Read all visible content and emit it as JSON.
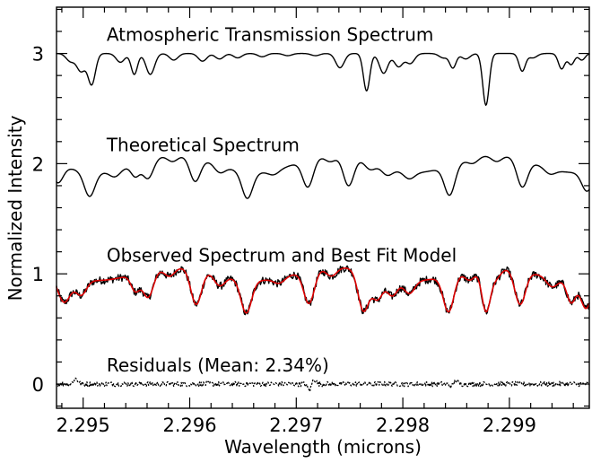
{
  "chart_data": {
    "type": "line",
    "xlabel": "Wavelength (microns)",
    "ylabel": "Normalized Intensity",
    "xlim": [
      2.29475,
      2.29975
    ],
    "ylim": [
      -0.22,
      3.42
    ],
    "xticks": [
      2.295,
      2.296,
      2.297,
      2.298,
      2.299
    ],
    "xtick_labels": [
      "2.295",
      "2.296",
      "2.297",
      "2.298",
      "2.299"
    ],
    "yticks": [
      0,
      1,
      2,
      3
    ],
    "ytick_labels": [
      "0",
      "1",
      "2",
      "3"
    ],
    "grid": false,
    "legend": "none",
    "annotations": [
      {
        "id": "atm",
        "text": "Atmospheric Transmission Spectrum",
        "x": 2.29522,
        "y": 3.17
      },
      {
        "id": "theo",
        "text": "Theoretical Spectrum",
        "x": 2.29522,
        "y": 2.17
      },
      {
        "id": "obs",
        "text": "Observed Spectrum and Best Fit Model",
        "x": 2.29522,
        "y": 1.17
      },
      {
        "id": "res",
        "text": "Residuals (Mean: 2.34%)",
        "x": 2.29522,
        "y": 0.17
      }
    ],
    "series": [
      {
        "id": "atmospheric",
        "color": "#000000",
        "style": "solid",
        "baseline": 3.0,
        "continuum": 0.0,
        "features": [
          [
            2.29488,
            0.07,
            4e-05
          ],
          [
            2.29498,
            0.16,
            4e-05
          ],
          [
            2.29508,
            0.28,
            3.5e-05
          ],
          [
            2.29535,
            0.08,
            4e-05
          ],
          [
            2.29548,
            0.19,
            3e-05
          ],
          [
            2.29563,
            0.19,
            4e-05
          ],
          [
            2.29585,
            0.06,
            4e-05
          ],
          [
            2.29612,
            0.07,
            4e-05
          ],
          [
            2.29628,
            0.05,
            4e-05
          ],
          [
            2.29645,
            0.04,
            4e-05
          ],
          [
            2.29668,
            0.03,
            4e-05
          ],
          [
            2.29692,
            0.02,
            4e-05
          ],
          [
            2.29718,
            0.02,
            4e-05
          ],
          [
            2.29741,
            0.13,
            4e-05
          ],
          [
            2.29766,
            0.34,
            3e-05
          ],
          [
            2.29782,
            0.18,
            4e-05
          ],
          [
            2.29796,
            0.12,
            4e-05
          ],
          [
            2.29807,
            0.09,
            4e-05
          ],
          [
            2.29838,
            0.04,
            4e-05
          ],
          [
            2.29847,
            0.13,
            3e-05
          ],
          [
            2.29859,
            0.05,
            4e-05
          ],
          [
            2.29878,
            0.47,
            3e-05
          ],
          [
            2.29912,
            0.16,
            3e-05
          ],
          [
            2.29922,
            0.04,
            4e-05
          ],
          [
            2.29949,
            0.14,
            3e-05
          ],
          [
            2.29958,
            0.1,
            3e-05
          ],
          [
            2.29968,
            0.06,
            3e-05
          ]
        ]
      },
      {
        "id": "theoretical",
        "color": "#000000",
        "style": "solid",
        "baseline": 2.0,
        "continuum": -0.08,
        "features": [
          [
            2.29476,
            0.17,
            5e-05
          ],
          [
            2.29506,
            0.22,
            5e-05
          ],
          [
            2.2953,
            0.06,
            5e-05
          ],
          [
            2.29549,
            0.11,
            4e-05
          ],
          [
            2.29561,
            0.17,
            5e-05
          ],
          [
            2.29584,
            0.06,
            5e-05
          ],
          [
            2.29605,
            0.22,
            5e-05
          ],
          [
            2.29628,
            0.07,
            5e-05
          ],
          [
            2.29654,
            0.24,
            5e-05
          ],
          [
            2.29679,
            0.04,
            5e-05
          ],
          [
            2.29711,
            0.25,
            5e-05
          ],
          [
            2.29732,
            0.06,
            5e-05
          ],
          [
            2.29749,
            0.27,
            5e-05
          ],
          [
            2.29769,
            0.07,
            5e-05
          ],
          [
            2.29785,
            0.07,
            5e-05
          ],
          [
            2.29806,
            0.06,
            5e-05
          ],
          [
            2.29844,
            0.27,
            5e-05
          ],
          [
            2.29866,
            0.05,
            5e-05
          ],
          [
            2.29888,
            0.06,
            5e-05
          ],
          [
            2.29912,
            0.25,
            5e-05
          ],
          [
            2.29938,
            0.05,
            5e-05
          ],
          [
            2.29973,
            0.18,
            5e-05
          ]
        ]
      },
      {
        "id": "observed",
        "color": "#000000",
        "style": "solid",
        "baseline": 1.0,
        "continuum": -0.06,
        "noise": 0.035,
        "features": [
          [
            2.29482,
            0.24,
            6e-05
          ],
          [
            2.29498,
            0.14,
            5e-05
          ],
          [
            2.29549,
            0.15,
            4e-05
          ],
          [
            2.29561,
            0.24,
            5e-05
          ],
          [
            2.29581,
            0.08,
            5e-05
          ],
          [
            2.29606,
            0.32,
            5e-05
          ],
          [
            2.29628,
            0.1,
            5e-05
          ],
          [
            2.29653,
            0.3,
            5e-05
          ],
          [
            2.29684,
            0.05,
            5e-05
          ],
          [
            2.29712,
            0.3,
            5e-05
          ],
          [
            2.29733,
            0.08,
            5e-05
          ],
          [
            2.29763,
            0.36,
            5e-05
          ],
          [
            2.29776,
            0.22,
            5e-05
          ],
          [
            2.2979,
            0.16,
            5e-05
          ],
          [
            2.29806,
            0.12,
            5e-05
          ],
          [
            2.29843,
            0.33,
            5e-05
          ],
          [
            2.29863,
            0.09,
            5e-05
          ],
          [
            2.29878,
            0.38,
            4e-05
          ],
          [
            2.29887,
            0.1,
            5e-05
          ],
          [
            2.2991,
            0.31,
            5e-05
          ],
          [
            2.2994,
            0.08,
            5e-05
          ],
          [
            2.29958,
            0.2,
            4e-05
          ],
          [
            2.29972,
            0.26,
            5e-05
          ]
        ]
      },
      {
        "id": "model",
        "color": "#dd0000",
        "style": "solid",
        "baseline": 1.0,
        "continuum": -0.06,
        "features": [
          [
            2.29482,
            0.24,
            6e-05
          ],
          [
            2.29498,
            0.14,
            5e-05
          ],
          [
            2.29549,
            0.15,
            4e-05
          ],
          [
            2.29561,
            0.24,
            5e-05
          ],
          [
            2.29581,
            0.08,
            5e-05
          ],
          [
            2.29606,
            0.32,
            5e-05
          ],
          [
            2.29628,
            0.1,
            5e-05
          ],
          [
            2.29653,
            0.3,
            5e-05
          ],
          [
            2.29684,
            0.05,
            5e-05
          ],
          [
            2.29712,
            0.3,
            5e-05
          ],
          [
            2.29733,
            0.08,
            5e-05
          ],
          [
            2.29763,
            0.36,
            5e-05
          ],
          [
            2.29776,
            0.22,
            5e-05
          ],
          [
            2.2979,
            0.16,
            5e-05
          ],
          [
            2.29806,
            0.12,
            5e-05
          ],
          [
            2.29843,
            0.33,
            5e-05
          ],
          [
            2.29863,
            0.09,
            5e-05
          ],
          [
            2.29878,
            0.38,
            4e-05
          ],
          [
            2.29887,
            0.1,
            5e-05
          ],
          [
            2.2991,
            0.31,
            5e-05
          ],
          [
            2.2994,
            0.08,
            5e-05
          ],
          [
            2.29958,
            0.2,
            4e-05
          ],
          [
            2.29972,
            0.26,
            5e-05
          ]
        ]
      },
      {
        "id": "residuals",
        "color": "#000000",
        "style": "dotted",
        "baseline": 0.0,
        "continuum": 0.0,
        "noise": 0.023,
        "features": [
          [
            2.29493,
            -0.05,
            2e-05
          ],
          [
            2.29713,
            0.07,
            2e-05
          ],
          [
            2.29716,
            -0.06,
            2e-05
          ],
          [
            2.29847,
            0.04,
            2e-05
          ],
          [
            2.29849,
            -0.05,
            2e-05
          ]
        ]
      }
    ]
  }
}
